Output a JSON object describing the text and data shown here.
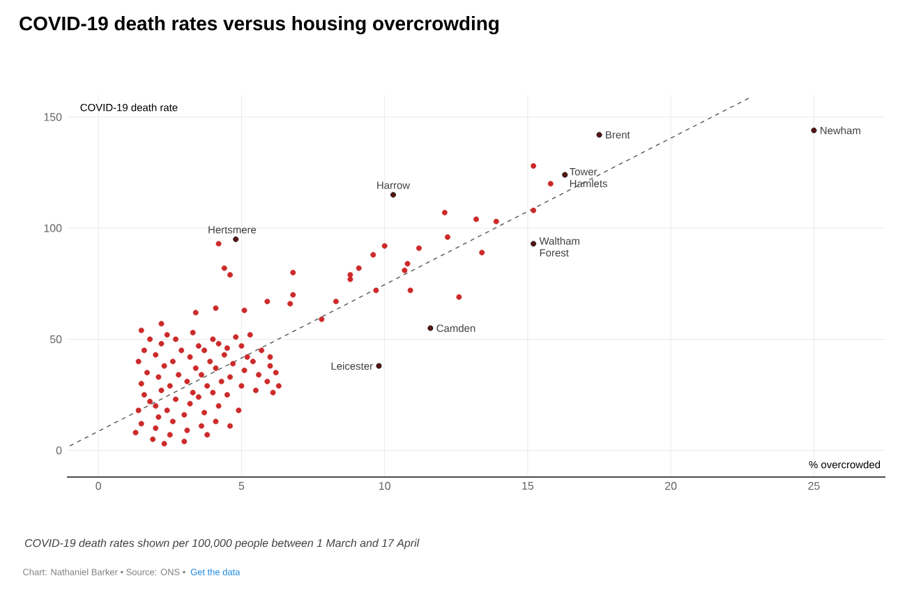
{
  "chart_data": {
    "type": "scatter",
    "title": "COVID-19 death rates versus housing overcrowding",
    "xlabel": "% overcrowded",
    "ylabel": "COVID-19 death rate",
    "xlim": [
      -1.1,
      27.5
    ],
    "ylim": [
      -12,
      160
    ],
    "xticks": [
      0,
      5,
      10,
      15,
      20,
      25
    ],
    "yticks": [
      0,
      50,
      100,
      150
    ],
    "grid": true,
    "marker": "circle",
    "series": [
      {
        "color": "#cc2a2a",
        "x": [
          1.3,
          1.5,
          1.4,
          1.6,
          1.5,
          1.7,
          1.4,
          1.6,
          1.8,
          1.9,
          2.0,
          2.1,
          2.0,
          2.2,
          2.1,
          2.3,
          2.0,
          2.2,
          2.4,
          2.5,
          2.6,
          2.4,
          2.7,
          2.5,
          2.8,
          2.6,
          2.9,
          2.7,
          3.0,
          3.1,
          3.0,
          3.2,
          3.3,
          3.1,
          3.4,
          3.2,
          3.5,
          3.3,
          3.6,
          3.7,
          3.5,
          3.8,
          3.6,
          3.9,
          3.7,
          4.0,
          4.1,
          4.2,
          4.0,
          4.3,
          4.1,
          4.4,
          4.2,
          4.5,
          4.6,
          4.7,
          4.5,
          4.8,
          4.9,
          5.0,
          5.1,
          5.2,
          5.0,
          5.3,
          5.5,
          5.6,
          5.4,
          5.7,
          5.9,
          6.0,
          6.2,
          6.1,
          6.3,
          6.0,
          4.6,
          3.8,
          2.3,
          1.8,
          2.2,
          1.5,
          3.4,
          4.1,
          5.1,
          5.9,
          4.2,
          4.4,
          4.6,
          6.8,
          6.8,
          6.7,
          7.8,
          8.3,
          8.8,
          8.8,
          9.1,
          9.6,
          10.0,
          9.7,
          10.7,
          10.8,
          11.2,
          10.9,
          12.1,
          12.2,
          12.6,
          13.2,
          13.9,
          13.4,
          15.2,
          15.8,
          15.2
        ],
        "values": [
          8,
          12,
          18,
          25,
          30,
          35,
          40,
          45,
          50,
          5,
          10,
          15,
          20,
          27,
          33,
          38,
          43,
          48,
          52,
          7,
          13,
          18,
          23,
          29,
          34,
          40,
          45,
          50,
          4,
          9,
          16,
          21,
          26,
          31,
          37,
          42,
          47,
          53,
          11,
          17,
          24,
          29,
          34,
          40,
          45,
          50,
          13,
          20,
          26,
          31,
          37,
          43,
          48,
          25,
          33,
          39,
          46,
          51,
          18,
          29,
          36,
          42,
          47,
          52,
          27,
          34,
          40,
          45,
          31,
          38,
          35,
          26,
          29,
          42,
          11,
          7,
          3,
          22,
          57,
          54,
          62,
          64,
          63,
          67,
          93,
          82,
          79,
          80,
          70,
          66,
          59,
          67,
          79,
          77,
          82,
          88,
          92,
          72,
          81,
          84,
          91,
          72,
          107,
          96,
          69,
          104,
          103,
          89,
          128,
          120,
          108
        ]
      },
      {
        "color": "#5c1414",
        "x": [
          17.5,
          25,
          10.3,
          16.3,
          4.8,
          15.2,
          11.6,
          9.8
        ],
        "values": [
          142,
          144,
          115,
          124,
          95,
          93,
          55,
          38
        ]
      },
      {
        "type": "line",
        "color": "#555555",
        "marker": "none",
        "line_style": "dashed",
        "x": [
          -1.0,
          22.8
        ],
        "values": [
          2,
          159
        ]
      }
    ],
    "annotations": [
      {
        "text": "Brent",
        "x": 17.5,
        "y": 142
      },
      {
        "text": "Newham",
        "x": 25,
        "y": 144
      },
      {
        "text": "Harrow",
        "x": 10.3,
        "y": 115
      },
      {
        "text": "Tower Hamlets",
        "x": 16.3,
        "y": 124
      },
      {
        "text": "Hertsmere",
        "x": 4.8,
        "y": 95
      },
      {
        "text": "Waltham Forest",
        "x": 15.2,
        "y": 93
      },
      {
        "text": "Camden",
        "x": 11.6,
        "y": 55
      },
      {
        "text": "Leicester",
        "x": 9.8,
        "y": 38
      },
      "*COVID-19 death rates shown per 100,000 people between 1 March and 17 April*",
      "Chart: Nathaniel Barker • Source: ONS •",
      "Get the data"
    ]
  }
}
